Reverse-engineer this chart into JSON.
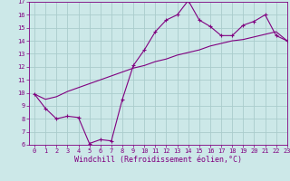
{
  "xlabel": "Windchill (Refroidissement éolien,°C)",
  "x_data": [
    0,
    1,
    2,
    3,
    4,
    5,
    6,
    7,
    8,
    9,
    10,
    11,
    12,
    13,
    14,
    15,
    16,
    17,
    18,
    19,
    20,
    21,
    22,
    23
  ],
  "line1_y": [
    9.9,
    8.8,
    8.0,
    8.2,
    8.1,
    6.1,
    6.4,
    6.3,
    9.5,
    12.1,
    13.3,
    14.7,
    15.6,
    16.0,
    17.1,
    15.6,
    15.1,
    14.4,
    14.4,
    15.2,
    15.5,
    16.0,
    14.4,
    14.0
  ],
  "line2_y": [
    9.9,
    9.5,
    9.7,
    10.1,
    10.4,
    10.7,
    11.0,
    11.3,
    11.6,
    11.9,
    12.1,
    12.4,
    12.6,
    12.9,
    13.1,
    13.3,
    13.6,
    13.8,
    14.0,
    14.1,
    14.3,
    14.5,
    14.7,
    14.0
  ],
  "line_color": "#800080",
  "bg_color": "#cce8e8",
  "grid_color": "#aacccc",
  "axis_color": "#800080",
  "ylim": [
    6,
    17
  ],
  "xlim": [
    -0.5,
    23
  ],
  "yticks": [
    6,
    7,
    8,
    9,
    10,
    11,
    12,
    13,
    14,
    15,
    16,
    17
  ],
  "xticks": [
    0,
    1,
    2,
    3,
    4,
    5,
    6,
    7,
    8,
    9,
    10,
    11,
    12,
    13,
    14,
    15,
    16,
    17,
    18,
    19,
    20,
    21,
    22,
    23
  ],
  "tick_fontsize": 5.0,
  "xlabel_fontsize": 6.0
}
